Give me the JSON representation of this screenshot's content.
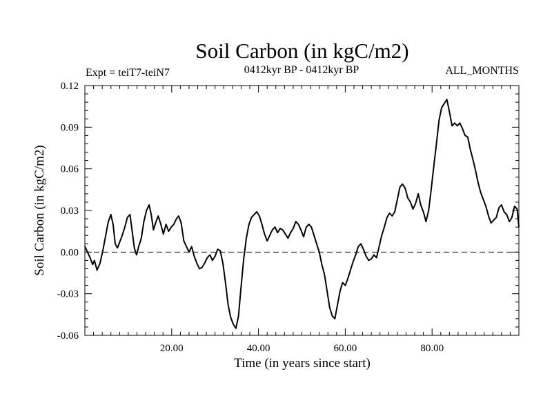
{
  "chart_data": {
    "type": "line",
    "title": "Soil Carbon (in kgC/m2)",
    "subtitle_left": "Expt = teiT7-teiN7",
    "subtitle_center": "0412kyr BP - 0412kyr BP",
    "subtitle_right": "ALL_MONTHS",
    "xlabel": "Time (in years since start)",
    "ylabel": "Soil Carbon (in kgC/m2)",
    "xlim": [
      0,
      100
    ],
    "ylim": [
      -0.06,
      0.12
    ],
    "x_tick_labels": [
      "20.00",
      "40.00",
      "60.00",
      "80.00"
    ],
    "y_tick_labels": [
      "0.12",
      "0.09",
      "0.06",
      "0.03",
      "0.00",
      "-0.03",
      "-0.06"
    ],
    "reference_line": 0.0,
    "grid": false,
    "series": [
      {
        "name": "Soil Carbon",
        "points": [
          [
            0,
            0.004
          ],
          [
            0.6,
            0.0
          ],
          [
            1.2,
            -0.004
          ],
          [
            1.8,
            -0.009
          ],
          [
            2.2,
            -0.006
          ],
          [
            2.8,
            -0.013
          ],
          [
            3.5,
            -0.008
          ],
          [
            4.2,
            0.002
          ],
          [
            4.8,
            0.012
          ],
          [
            5.4,
            0.022
          ],
          [
            6.0,
            0.027
          ],
          [
            6.5,
            0.02
          ],
          [
            7.0,
            0.006
          ],
          [
            7.5,
            0.003
          ],
          [
            8.0,
            0.007
          ],
          [
            8.6,
            0.012
          ],
          [
            9.2,
            0.018
          ],
          [
            9.8,
            0.025
          ],
          [
            10.4,
            0.027
          ],
          [
            10.9,
            0.015
          ],
          [
            11.4,
            0.003
          ],
          [
            11.9,
            -0.002
          ],
          [
            12.4,
            0.004
          ],
          [
            13.0,
            0.01
          ],
          [
            13.6,
            0.022
          ],
          [
            14.2,
            0.03
          ],
          [
            14.8,
            0.034
          ],
          [
            15.3,
            0.027
          ],
          [
            15.8,
            0.016
          ],
          [
            16.3,
            0.021
          ],
          [
            16.9,
            0.026
          ],
          [
            17.5,
            0.02
          ],
          [
            18.1,
            0.013
          ],
          [
            18.7,
            0.02
          ],
          [
            19.3,
            0.015
          ],
          [
            19.9,
            0.018
          ],
          [
            20.5,
            0.02
          ],
          [
            21.1,
            0.024
          ],
          [
            21.6,
            0.026
          ],
          [
            22.2,
            0.021
          ],
          [
            22.8,
            0.008
          ],
          [
            23.4,
            0.004
          ],
          [
            24.0,
            0.0
          ],
          [
            24.6,
            0.004
          ],
          [
            25.2,
            -0.003
          ],
          [
            25.8,
            -0.008
          ],
          [
            26.4,
            -0.012
          ],
          [
            27.0,
            -0.011
          ],
          [
            27.6,
            -0.008
          ],
          [
            28.2,
            -0.004
          ],
          [
            28.8,
            -0.002
          ],
          [
            29.4,
            -0.006
          ],
          [
            30.0,
            -0.003
          ],
          [
            30.6,
            0.002
          ],
          [
            31.2,
            0.001
          ],
          [
            31.8,
            -0.008
          ],
          [
            32.4,
            -0.022
          ],
          [
            33.0,
            -0.038
          ],
          [
            33.6,
            -0.047
          ],
          [
            34.2,
            -0.052
          ],
          [
            34.8,
            -0.055
          ],
          [
            35.4,
            -0.046
          ],
          [
            36.0,
            -0.025
          ],
          [
            36.6,
            -0.005
          ],
          [
            37.2,
            0.01
          ],
          [
            37.8,
            0.02
          ],
          [
            38.4,
            0.025
          ],
          [
            39.0,
            0.027
          ],
          [
            39.6,
            0.029
          ],
          [
            40.2,
            0.026
          ],
          [
            40.8,
            0.02
          ],
          [
            41.4,
            0.013
          ],
          [
            42.0,
            0.008
          ],
          [
            42.6,
            0.012
          ],
          [
            43.2,
            0.016
          ],
          [
            43.8,
            0.018
          ],
          [
            44.4,
            0.014
          ],
          [
            45.0,
            0.017
          ],
          [
            45.6,
            0.016
          ],
          [
            46.2,
            0.013
          ],
          [
            46.8,
            0.01
          ],
          [
            47.4,
            0.014
          ],
          [
            48.0,
            0.017
          ],
          [
            48.6,
            0.022
          ],
          [
            49.2,
            0.02
          ],
          [
            49.8,
            0.016
          ],
          [
            50.4,
            0.011
          ],
          [
            51.0,
            0.018
          ],
          [
            51.6,
            0.02
          ],
          [
            52.2,
            0.018
          ],
          [
            52.8,
            0.012
          ],
          [
            53.4,
            0.006
          ],
          [
            54.0,
            0.0
          ],
          [
            54.6,
            -0.009
          ],
          [
            55.2,
            -0.016
          ],
          [
            55.8,
            -0.028
          ],
          [
            56.4,
            -0.04
          ],
          [
            57.0,
            -0.046
          ],
          [
            57.6,
            -0.048
          ],
          [
            58.2,
            -0.038
          ],
          [
            58.8,
            -0.028
          ],
          [
            59.4,
            -0.022
          ],
          [
            60.0,
            -0.024
          ],
          [
            60.6,
            -0.019
          ],
          [
            61.2,
            -0.013
          ],
          [
            61.8,
            -0.007
          ],
          [
            62.4,
            -0.002
          ],
          [
            63.0,
            0.004
          ],
          [
            63.6,
            0.006
          ],
          [
            64.2,
            0.002
          ],
          [
            64.8,
            -0.003
          ],
          [
            65.4,
            -0.006
          ],
          [
            66.0,
            -0.005
          ],
          [
            66.6,
            -0.002
          ],
          [
            67.2,
            -0.004
          ],
          [
            67.8,
            0.004
          ],
          [
            68.4,
            0.012
          ],
          [
            69.0,
            0.018
          ],
          [
            69.6,
            0.025
          ],
          [
            70.2,
            0.028
          ],
          [
            70.8,
            0.026
          ],
          [
            71.4,
            0.029
          ],
          [
            72.0,
            0.038
          ],
          [
            72.6,
            0.047
          ],
          [
            73.2,
            0.049
          ],
          [
            73.8,
            0.046
          ],
          [
            74.4,
            0.039
          ],
          [
            75.0,
            0.036
          ],
          [
            75.6,
            0.031
          ],
          [
            76.2,
            0.035
          ],
          [
            76.8,
            0.042
          ],
          [
            77.4,
            0.034
          ],
          [
            78.0,
            0.029
          ],
          [
            78.6,
            0.022
          ],
          [
            79.2,
            0.03
          ],
          [
            79.8,
            0.045
          ],
          [
            80.4,
            0.062
          ],
          [
            81.0,
            0.078
          ],
          [
            81.6,
            0.095
          ],
          [
            82.2,
            0.104
          ],
          [
            82.8,
            0.107
          ],
          [
            83.4,
            0.11
          ],
          [
            84.0,
            0.101
          ],
          [
            84.6,
            0.091
          ],
          [
            85.2,
            0.093
          ],
          [
            85.8,
            0.091
          ],
          [
            86.4,
            0.093
          ],
          [
            87.0,
            0.089
          ],
          [
            87.6,
            0.084
          ],
          [
            88.2,
            0.083
          ],
          [
            88.8,
            0.074
          ],
          [
            89.4,
            0.067
          ],
          [
            90.0,
            0.059
          ],
          [
            90.6,
            0.05
          ],
          [
            91.2,
            0.043
          ],
          [
            91.8,
            0.038
          ],
          [
            92.4,
            0.033
          ],
          [
            93.0,
            0.026
          ],
          [
            93.6,
            0.021
          ],
          [
            94.2,
            0.023
          ],
          [
            94.8,
            0.025
          ],
          [
            95.4,
            0.032
          ],
          [
            96.0,
            0.034
          ],
          [
            96.6,
            0.029
          ],
          [
            97.2,
            0.027
          ],
          [
            97.8,
            0.022
          ],
          [
            98.4,
            0.025
          ],
          [
            99.0,
            0.033
          ],
          [
            99.6,
            0.031
          ],
          [
            100.0,
            0.018
          ]
        ]
      }
    ]
  }
}
